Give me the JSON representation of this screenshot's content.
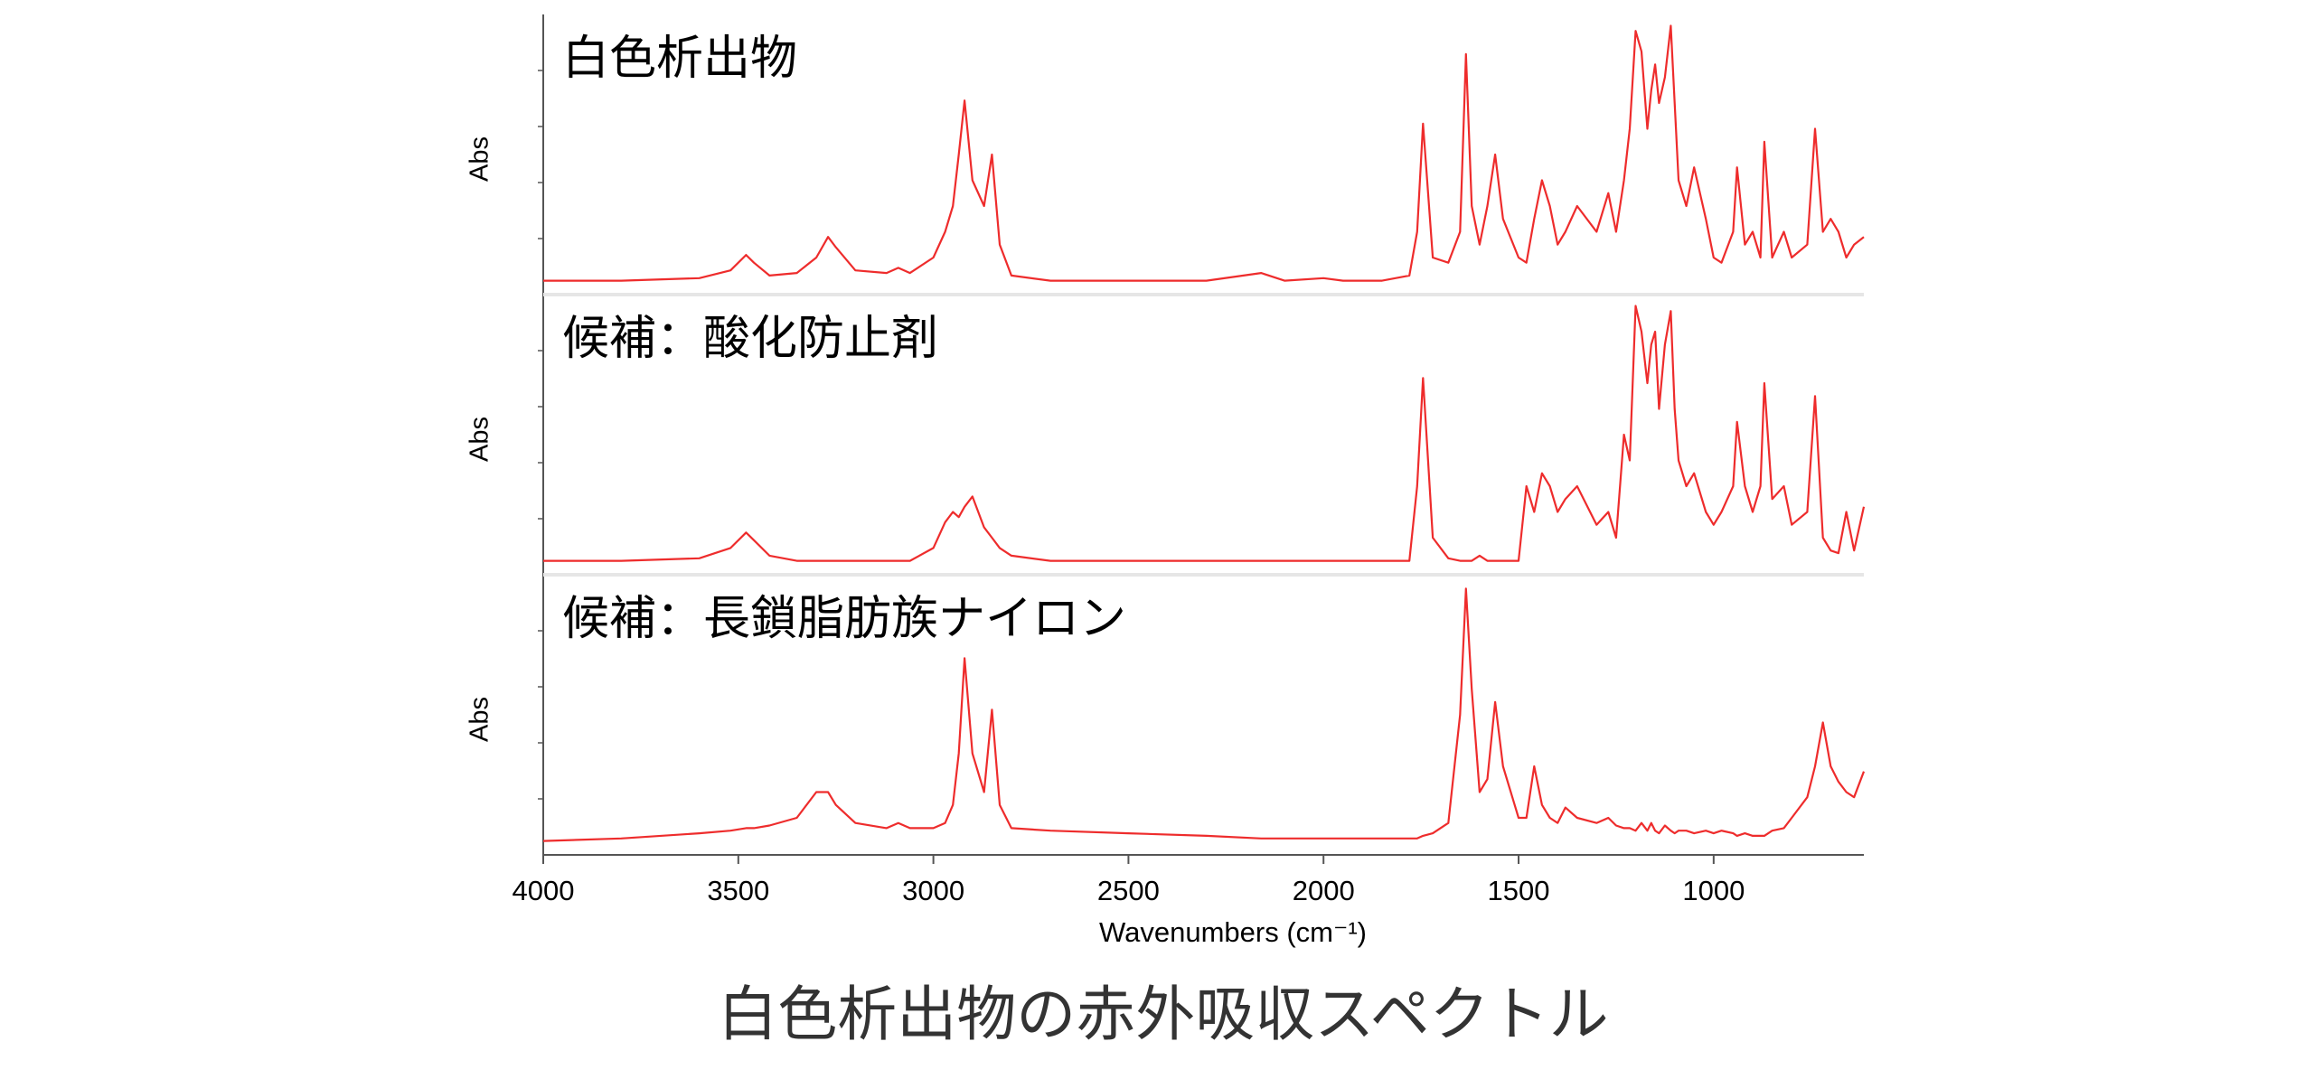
{
  "chart_data": {
    "type": "line",
    "title": "白色析出物の赤外吸収スペクトル",
    "xlabel": "Wavenumbers (cm⁻¹)",
    "ylabel": "Abs",
    "xlim": [
      4000,
      615
    ],
    "xticks": [
      4000,
      3500,
      3000,
      2500,
      2000,
      1500,
      1000
    ],
    "ylim": [
      -0.03,
      1.03
    ],
    "x": [
      4000,
      3800,
      3600,
      3520,
      3480,
      3460,
      3420,
      3350,
      3300,
      3270,
      3250,
      3200,
      3120,
      3090,
      3060,
      3000,
      2970,
      2950,
      2935,
      2920,
      2900,
      2870,
      2850,
      2830,
      2800,
      2700,
      2500,
      2300,
      2160,
      2100,
      2000,
      1950,
      1850,
      1780,
      1760,
      1745,
      1720,
      1680,
      1650,
      1635,
      1620,
      1600,
      1580,
      1560,
      1540,
      1500,
      1480,
      1460,
      1440,
      1420,
      1400,
      1380,
      1350,
      1300,
      1270,
      1250,
      1230,
      1215,
      1200,
      1185,
      1170,
      1160,
      1150,
      1140,
      1125,
      1110,
      1100,
      1090,
      1070,
      1050,
      1020,
      1000,
      980,
      950,
      940,
      920,
      900,
      880,
      870,
      850,
      820,
      800,
      760,
      740,
      720,
      700,
      680,
      660,
      640,
      615
    ],
    "series": [
      {
        "name": "白色析出物",
        "color": "#ee2c2c",
        "values": [
          0.01,
          0.01,
          0.02,
          0.05,
          0.11,
          0.08,
          0.03,
          0.04,
          0.1,
          0.18,
          0.14,
          0.05,
          0.04,
          0.06,
          0.04,
          0.1,
          0.2,
          0.3,
          0.5,
          0.71,
          0.4,
          0.3,
          0.5,
          0.15,
          0.03,
          0.01,
          0.01,
          0.01,
          0.04,
          0.01,
          0.02,
          0.01,
          0.01,
          0.03,
          0.2,
          0.62,
          0.1,
          0.08,
          0.2,
          0.89,
          0.3,
          0.15,
          0.3,
          0.5,
          0.25,
          0.1,
          0.08,
          0.25,
          0.4,
          0.3,
          0.15,
          0.2,
          0.3,
          0.2,
          0.35,
          0.2,
          0.4,
          0.6,
          0.98,
          0.9,
          0.6,
          0.75,
          0.85,
          0.7,
          0.8,
          1.0,
          0.7,
          0.4,
          0.3,
          0.45,
          0.25,
          0.1,
          0.08,
          0.2,
          0.45,
          0.15,
          0.2,
          0.1,
          0.55,
          0.1,
          0.2,
          0.1,
          0.15,
          0.6,
          0.2,
          0.25,
          0.2,
          0.1,
          0.15,
          0.18
        ]
      },
      {
        "name": "候補：酸化防止剤",
        "color": "#ee2c2c",
        "values": [
          0.01,
          0.01,
          0.02,
          0.06,
          0.12,
          0.09,
          0.03,
          0.01,
          0.01,
          0.01,
          0.01,
          0.01,
          0.01,
          0.01,
          0.01,
          0.06,
          0.16,
          0.2,
          0.18,
          0.22,
          0.26,
          0.14,
          0.1,
          0.06,
          0.03,
          0.01,
          0.01,
          0.01,
          0.01,
          0.01,
          0.01,
          0.01,
          0.01,
          0.01,
          0.3,
          0.72,
          0.1,
          0.02,
          0.01,
          0.01,
          0.01,
          0.03,
          0.01,
          0.01,
          0.01,
          0.01,
          0.3,
          0.2,
          0.35,
          0.3,
          0.2,
          0.25,
          0.3,
          0.15,
          0.2,
          0.1,
          0.5,
          0.4,
          1.0,
          0.9,
          0.7,
          0.85,
          0.9,
          0.6,
          0.85,
          0.98,
          0.6,
          0.4,
          0.3,
          0.35,
          0.2,
          0.15,
          0.2,
          0.3,
          0.55,
          0.3,
          0.2,
          0.3,
          0.7,
          0.25,
          0.3,
          0.15,
          0.2,
          0.65,
          0.1,
          0.05,
          0.04,
          0.2,
          0.05,
          0.22
        ]
      },
      {
        "name": "候補：長鎖脂肪族ナイロン",
        "color": "#ee2c2c",
        "values": [
          0.01,
          0.02,
          0.04,
          0.05,
          0.06,
          0.06,
          0.07,
          0.1,
          0.2,
          0.2,
          0.15,
          0.08,
          0.06,
          0.08,
          0.06,
          0.06,
          0.08,
          0.15,
          0.35,
          0.72,
          0.35,
          0.2,
          0.52,
          0.15,
          0.06,
          0.05,
          0.04,
          0.03,
          0.02,
          0.02,
          0.02,
          0.02,
          0.02,
          0.02,
          0.02,
          0.03,
          0.04,
          0.08,
          0.5,
          0.99,
          0.6,
          0.2,
          0.25,
          0.55,
          0.3,
          0.1,
          0.1,
          0.3,
          0.15,
          0.1,
          0.08,
          0.14,
          0.1,
          0.08,
          0.1,
          0.07,
          0.06,
          0.06,
          0.05,
          0.08,
          0.05,
          0.08,
          0.05,
          0.04,
          0.07,
          0.05,
          0.04,
          0.05,
          0.05,
          0.04,
          0.05,
          0.04,
          0.05,
          0.04,
          0.03,
          0.04,
          0.03,
          0.03,
          0.03,
          0.05,
          0.06,
          0.1,
          0.18,
          0.3,
          0.47,
          0.3,
          0.24,
          0.2,
          0.18,
          0.28
        ]
      }
    ]
  }
}
